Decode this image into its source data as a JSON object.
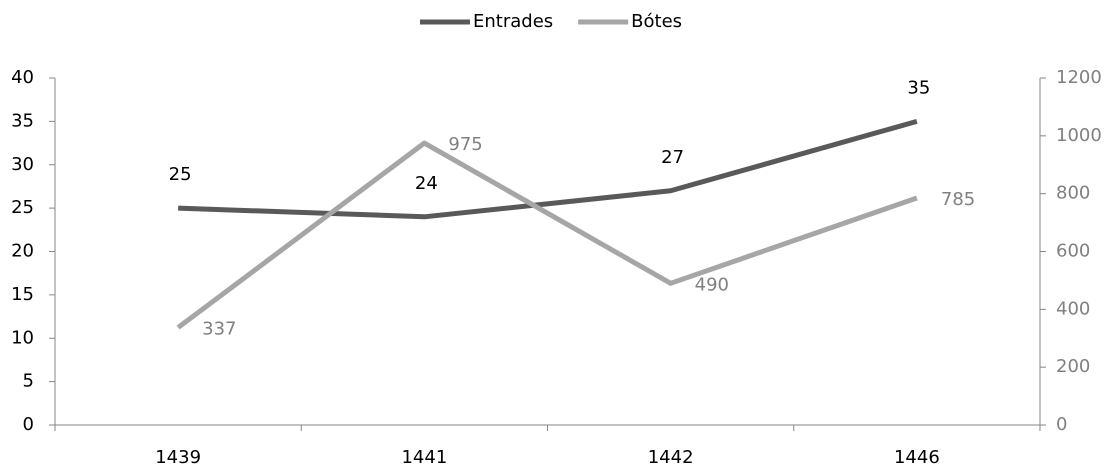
{
  "chart_data": {
    "type": "line",
    "categories": [
      "1439",
      "1441",
      "1442",
      "1446"
    ],
    "series": [
      {
        "name": "Entrades",
        "color": "#595959",
        "values": [
          25,
          24,
          27,
          35
        ]
      },
      {
        "name": "Bótes",
        "color": "#a6a6a6",
        "axis": "y2",
        "values": [
          337,
          975,
          490,
          785
        ]
      }
    ],
    "ylim": [
      0,
      40
    ],
    "yticks": [
      0,
      5,
      10,
      15,
      20,
      25,
      30,
      35,
      40
    ],
    "y2lim": [
      0,
      1200
    ],
    "y2ticks": [
      0,
      200,
      400,
      600,
      800,
      1000,
      1200
    ],
    "legend": "top",
    "grid": false
  }
}
